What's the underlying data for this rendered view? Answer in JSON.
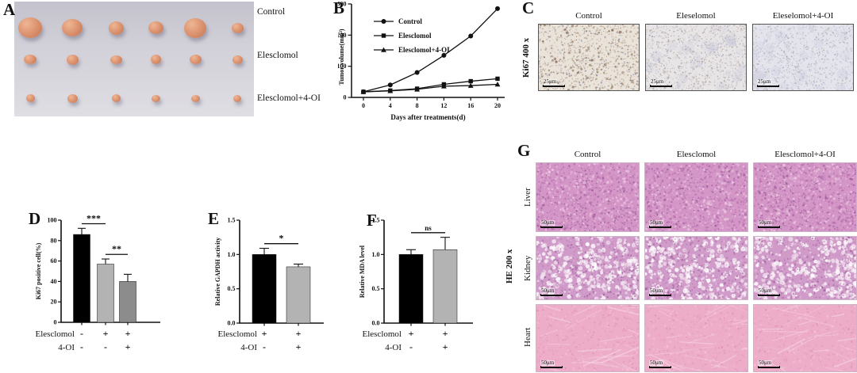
{
  "panels": {
    "a": {
      "letter": "A",
      "rows": [
        {
          "label": "Control",
          "tumor_sizes": [
            [
              30,
              26
            ],
            [
              26,
              22
            ],
            [
              19,
              17
            ],
            [
              19,
              16
            ],
            [
              28,
              25
            ],
            [
              15,
              13
            ]
          ]
        },
        {
          "label": "Elesclomol",
          "tumor_sizes": [
            [
              16,
              12
            ],
            [
              15,
              13
            ],
            [
              15,
              11
            ],
            [
              13,
              12
            ],
            [
              15,
              12
            ],
            [
              13,
              11
            ]
          ]
        },
        {
          "label": "Elesclomol+4-OI",
          "tumor_sizes": [
            [
              11,
              10
            ],
            [
              13,
              11
            ],
            [
              11,
              10
            ],
            [
              11,
              9
            ],
            [
              11,
              9
            ],
            [
              10,
              9
            ]
          ]
        }
      ]
    },
    "b": {
      "letter": "B"
    },
    "c": {
      "letter": "C",
      "side_label": "Ki67 400 x",
      "column_labels": [
        "Control",
        "Eleselomol",
        "Eleselomol+4-OI"
      ],
      "scale_bar_label": "25μm"
    },
    "d": {
      "letter": "D"
    },
    "e": {
      "letter": "E"
    },
    "f": {
      "letter": "F"
    },
    "g": {
      "letter": "G",
      "side_label": "HE 200 x",
      "column_labels": [
        "Control",
        "Elesclomol",
        "Elesclomol+4-OI"
      ],
      "row_labels": [
        "Liver",
        "Kidney",
        "Heart"
      ],
      "scale_bar_label": "50μm"
    }
  },
  "chart_data": [
    {
      "id": "B",
      "type": "line",
      "title": "",
      "xlabel": "Days after treatments(d)",
      "ylabel": "Tumor volume(mm³)",
      "x": [
        0,
        4,
        8,
        12,
        16,
        20
      ],
      "xlim": [
        0,
        20
      ],
      "ylim": [
        0,
        300
      ],
      "yticks": [
        0,
        100,
        200,
        300
      ],
      "grid": false,
      "legend_position": "upper-left",
      "series": [
        {
          "name": "Control",
          "marker": "circle",
          "values": [
            18,
            40,
            80,
            135,
            197,
            285
          ]
        },
        {
          "name": "Elesclomol",
          "marker": "square",
          "values": [
            18,
            22,
            28,
            42,
            52,
            60
          ]
        },
        {
          "name": "Elesclomol+4-OI",
          "marker": "triangle",
          "values": [
            18,
            21,
            26,
            36,
            38,
            42
          ]
        }
      ]
    },
    {
      "id": "D",
      "type": "bar",
      "ylabel": "Ki67 positive cell(%)",
      "ylim": [
        0,
        100
      ],
      "yticks": [
        0,
        20,
        40,
        60,
        80,
        100
      ],
      "ytick_labels": [
        "0",
        "20",
        "40",
        "60",
        "80",
        "100"
      ],
      "categories": [
        "Control",
        "Elesclomol",
        "Elesclomol+4-OI"
      ],
      "values": [
        86,
        57,
        40
      ],
      "errors": [
        6,
        5,
        7
      ],
      "bar_colors": [
        "#000000",
        "#b3b3b3",
        "#8c8c8c"
      ],
      "x_sign_rows": [
        {
          "label": "Elesclomol",
          "signs": [
            "-",
            "+",
            "+"
          ]
        },
        {
          "label": "4-OI",
          "signs": [
            "-",
            "-",
            "+"
          ]
        }
      ],
      "significance": [
        {
          "between": [
            0,
            1
          ],
          "label": "***"
        },
        {
          "between": [
            1,
            2
          ],
          "label": "**"
        }
      ]
    },
    {
      "id": "E",
      "type": "bar",
      "ylabel": "Relative GAPDH activity",
      "ylim": [
        0,
        1.5
      ],
      "yticks": [
        0,
        0.5,
        1,
        1.5
      ],
      "ytick_labels": [
        "0.0",
        "0.5",
        "1.0",
        "1.5"
      ],
      "categories": [
        "Elesclomol",
        "Elesclomol+4-OI"
      ],
      "values": [
        1.0,
        0.82
      ],
      "errors": [
        0.09,
        0.04
      ],
      "bar_colors": [
        "#000000",
        "#b3b3b3"
      ],
      "x_sign_rows": [
        {
          "label": "Elesclomol",
          "signs": [
            "+",
            "+"
          ]
        },
        {
          "label": "4-OI",
          "signs": [
            "-",
            "+"
          ]
        }
      ],
      "significance": [
        {
          "between": [
            0,
            1
          ],
          "label": "*"
        }
      ]
    },
    {
      "id": "F",
      "type": "bar",
      "ylabel": "Relative MDA level",
      "ylim": [
        0,
        1.5
      ],
      "yticks": [
        0,
        0.5,
        1,
        1.5
      ],
      "ytick_labels": [
        "0.0",
        "0.5",
        "1.0",
        "1.5"
      ],
      "categories": [
        "Elesclomol",
        "Elesclomol+4-OI"
      ],
      "values": [
        1.0,
        1.07
      ],
      "errors": [
        0.07,
        0.18
      ],
      "bar_colors": [
        "#000000",
        "#b3b3b3"
      ],
      "x_sign_rows": [
        {
          "label": "Elesclomol",
          "signs": [
            "+",
            "+"
          ]
        },
        {
          "label": "4-OI",
          "signs": [
            "-",
            "+"
          ]
        }
      ],
      "significance": [
        {
          "between": [
            0,
            1
          ],
          "label": "ns"
        }
      ]
    }
  ],
  "colors": {
    "bar_black": "#000000",
    "bar_light_gray": "#b3b3b3",
    "bar_gray": "#8c8c8c",
    "tumor": "#d98f6d",
    "photo_bg": "#d2d0d8"
  }
}
